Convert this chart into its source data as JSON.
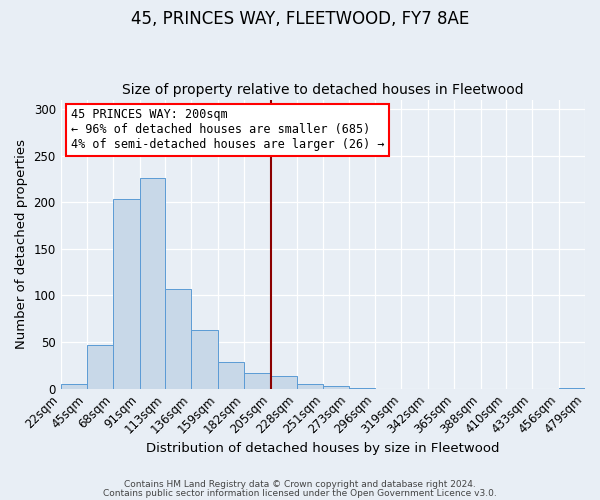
{
  "title": "45, PRINCES WAY, FLEETWOOD, FY7 8AE",
  "subtitle": "Size of property relative to detached houses in Fleetwood",
  "xlabel": "Distribution of detached houses by size in Fleetwood",
  "ylabel": "Number of detached properties",
  "bin_edges": [
    22,
    45,
    68,
    91,
    113,
    136,
    159,
    182,
    205,
    228,
    251,
    273,
    296,
    319,
    342,
    365,
    388,
    410,
    433,
    456,
    479
  ],
  "bar_heights": [
    5,
    47,
    203,
    226,
    107,
    63,
    29,
    17,
    14,
    5,
    3,
    1,
    0,
    0,
    0,
    0,
    0,
    0,
    0,
    1
  ],
  "bar_color": "#c8d8e8",
  "bar_edgecolor": "#5b9bd5",
  "red_line_x": 205,
  "ylim": [
    0,
    310
  ],
  "yticks": [
    0,
    50,
    100,
    150,
    200,
    250,
    300
  ],
  "xlim": [
    22,
    479
  ],
  "annotation_title": "45 PRINCES WAY: 200sqm",
  "annotation_line1": "← 96% of detached houses are smaller (685)",
  "annotation_line2": "4% of semi-detached houses are larger (26) →",
  "footer1": "Contains HM Land Registry data © Crown copyright and database right 2024.",
  "footer2": "Contains public sector information licensed under the Open Government Licence v3.0.",
  "bg_color": "#e8eef5",
  "plot_bg_color": "#e8eef5",
  "title_fontsize": 12,
  "subtitle_fontsize": 10,
  "axis_label_fontsize": 9.5,
  "tick_fontsize": 8.5
}
